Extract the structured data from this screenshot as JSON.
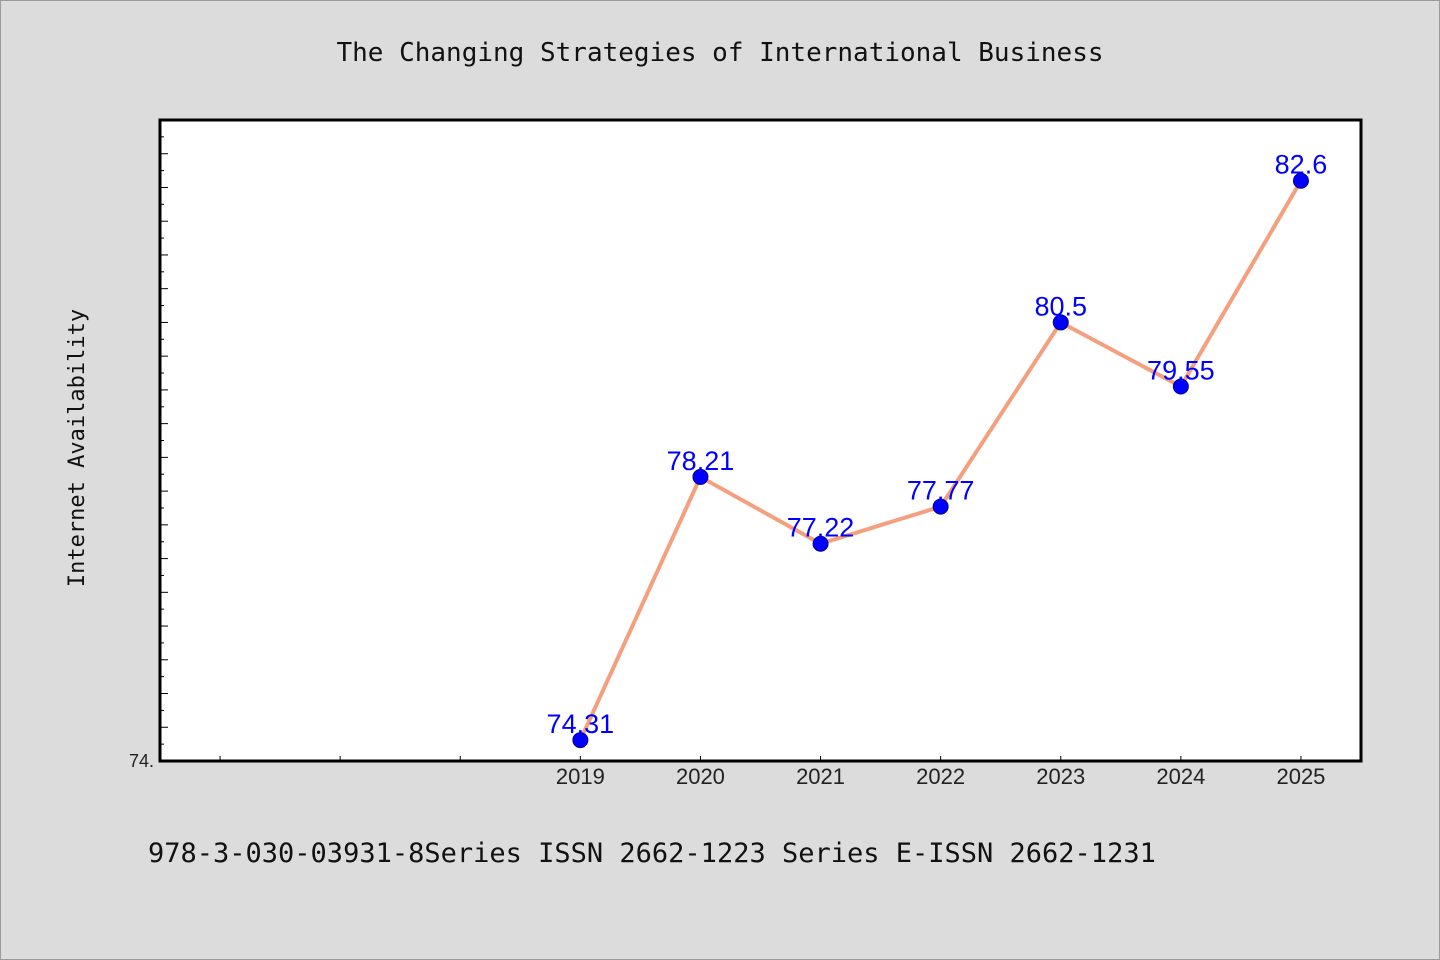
{
  "chart_data": {
    "type": "line",
    "title": "The Changing Strategies of International Business",
    "xlabel": "",
    "ylabel": "Internet Availability",
    "categories": [
      "2019",
      "2020",
      "2021",
      "2022",
      "2023",
      "2024",
      "2025"
    ],
    "series": [
      {
        "values": [
          74.31,
          78.21,
          77.22,
          77.77,
          80.5,
          79.55,
          82.6
        ],
        "labels": [
          "74.31",
          "78.21",
          "77.22",
          "77.77",
          "80.5",
          "79.55",
          "82.6"
        ]
      }
    ],
    "y_tick_labels": [
      "74."
    ],
    "ylim": [
      74.0,
      83.5
    ],
    "xlim": [
      2015.5,
      2025.5
    ],
    "grid": false,
    "legend": "none",
    "colors": {
      "line": "#f4a07e",
      "marker": "#0000ff",
      "marker_edge": "#00008b",
      "data_label": "#0000ff",
      "plot_background": "#ffffff",
      "page_background": "#dcdcdc"
    }
  },
  "footer": {
    "text": "978-3-030-03931-8Series ISSN 2662-1223 Series E-ISSN 2662-1231"
  }
}
